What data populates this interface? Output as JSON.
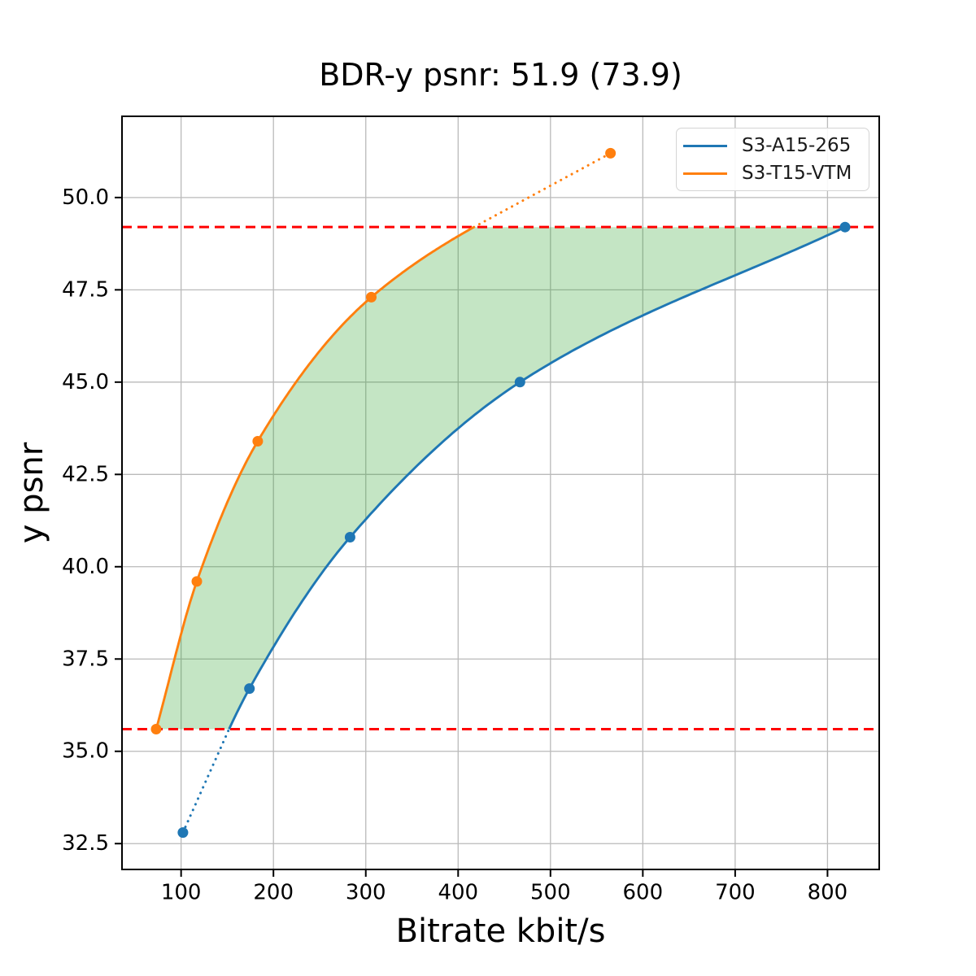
{
  "chart_data": {
    "type": "line",
    "title": "BDR-y psnr: 51.9 (73.9)",
    "xlabel": "Bitrate kbit/s",
    "ylabel": "y psnr",
    "xlim": [
      36,
      856
    ],
    "ylim": [
      31.8,
      52.2
    ],
    "xticks": [
      100,
      200,
      300,
      400,
      500,
      600,
      700,
      800
    ],
    "yticks": [
      32.5,
      35.0,
      37.5,
      40.0,
      42.5,
      45.0,
      47.5,
      50.0
    ],
    "grid": true,
    "grid_color": "#bababa",
    "spine_color": "#000000",
    "legend_position": "upper right",
    "series": [
      {
        "name": "S3-A15-265",
        "color": "#1f77b4",
        "points": [
          [
            102,
            32.8
          ],
          [
            174,
            36.7
          ],
          [
            283,
            40.8
          ],
          [
            467,
            45.0
          ],
          [
            819,
            49.2
          ]
        ]
      },
      {
        "name": "S3-T15-VTM",
        "color": "#ff7f0e",
        "points": [
          [
            73,
            35.6
          ],
          [
            117,
            39.6
          ],
          [
            183,
            43.4
          ],
          [
            306,
            47.3
          ],
          [
            565,
            51.2
          ]
        ]
      }
    ],
    "reference_lines": [
      {
        "y": 49.2,
        "color": "#ff0000",
        "style": "dashed"
      },
      {
        "y": 35.6,
        "color": "#ff0000",
        "style": "dashed"
      }
    ],
    "shaded_region": {
      "between": [
        "S3-T15-VTM",
        "S3-A15-265"
      ],
      "y_range": [
        35.6,
        49.2
      ],
      "color": "#2ca02c",
      "opacity": 0.28
    }
  }
}
